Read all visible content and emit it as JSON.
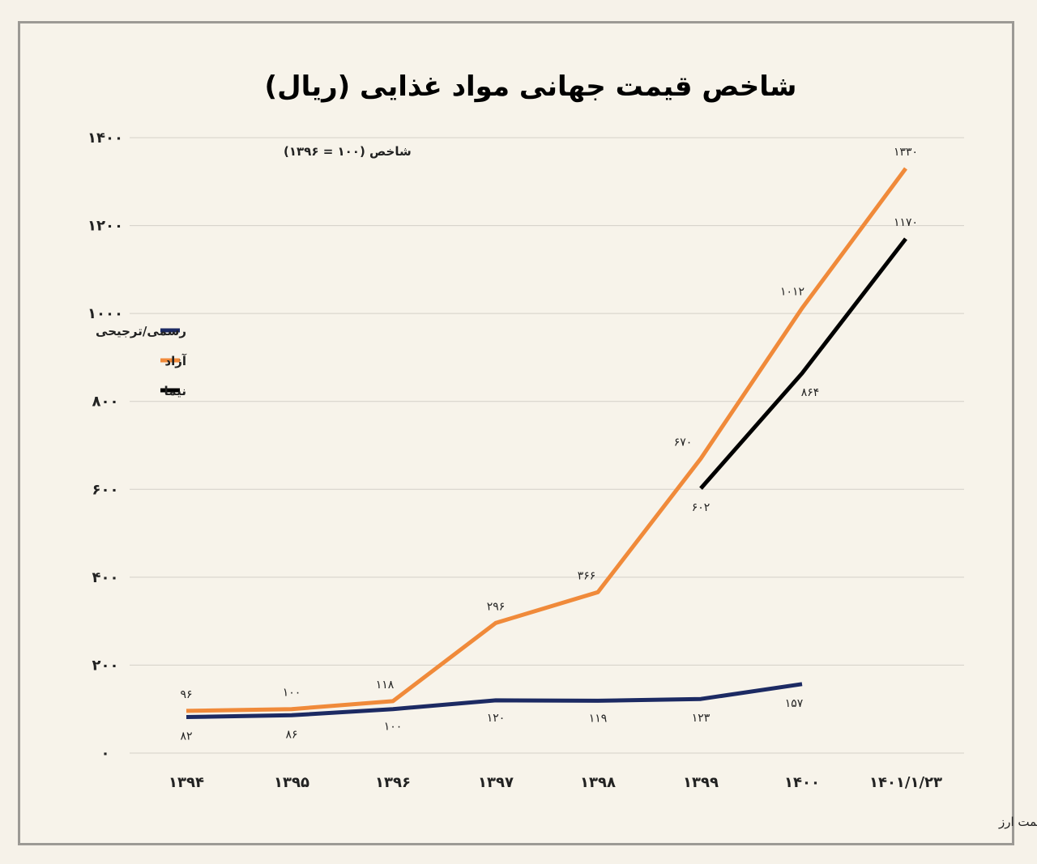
{
  "chart_data": {
    "type": "line",
    "title": "شاخص قیمت جهانی مواد غذایی (ریال)",
    "index_note": "شاخص (۱۰۰ = ۱۳۹۶)",
    "source": "تحلیل و استنتاج: احسان سلطانی بر اساس داده های فائو، بانک مرکزی ایران و مراجع قیمت ارز",
    "categories": [
      "۱۳۹۴",
      "۱۳۹۵",
      "۱۳۹۶",
      "۱۳۹۷",
      "۱۳۹۸",
      "۱۳۹۹",
      "۱۴۰۰",
      "۱۴۰۱/۱/۲۳"
    ],
    "ylim": [
      0,
      1400
    ],
    "yticks": [
      0,
      200,
      400,
      600,
      800,
      1000,
      1200,
      1400
    ],
    "ytick_labels": [
      "۰",
      "۲۰۰",
      "۴۰۰",
      "۶۰۰",
      "۸۰۰",
      "۱۰۰۰",
      "۱۲۰۰",
      "۱۴۰۰"
    ],
    "grid": true,
    "legend_position": "left",
    "series": [
      {
        "name": "رسمی/ترجیحی",
        "color": "#1c2a63",
        "values": [
          82,
          86,
          100,
          120,
          119,
          123,
          157,
          null
        ],
        "labels": [
          "۸۲",
          "۸۶",
          "۱۰۰",
          "۱۲۰",
          "۱۱۹",
          "۱۲۳",
          "۱۵۷",
          ""
        ]
      },
      {
        "name": "آزاد",
        "color": "#f08a3a",
        "values": [
          96,
          100,
          118,
          296,
          366,
          670,
          1012,
          1330
        ],
        "labels": [
          "۹۶",
          "۱۰۰",
          "۱۱۸",
          "۲۹۶",
          "۳۶۶",
          "۶۷۰",
          "۱۰۱۲",
          "۱۳۳۰"
        ]
      },
      {
        "name": "نیما",
        "color": "#000000",
        "values": [
          null,
          null,
          null,
          null,
          null,
          602,
          864,
          1170
        ],
        "labels": [
          "",
          "",
          "",
          "",
          "",
          "۶۰۲",
          "۸۶۴",
          "۱۱۷۰"
        ]
      }
    ]
  }
}
